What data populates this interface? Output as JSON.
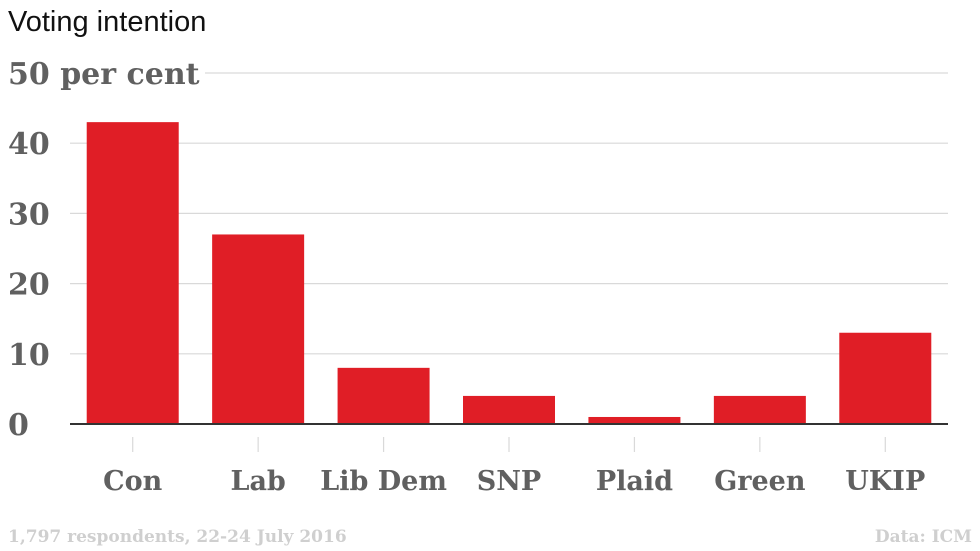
{
  "title": "Voting intention",
  "footer": {
    "note": "1,797 respondents, 22-24 July 2016",
    "source": "Data: ICM"
  },
  "colors": {
    "bar": "#e01e26",
    "grid": "#d9d9d9",
    "axis": "#333333",
    "text": "#606060"
  },
  "chart_data": {
    "type": "bar",
    "title": "Voting intention",
    "categories": [
      "Con",
      "Lab",
      "Lib Dem",
      "SNP",
      "Plaid",
      "Green",
      "UKIP"
    ],
    "values": [
      43,
      27,
      8,
      4,
      1,
      4,
      13
    ],
    "ylim": [
      0,
      50
    ],
    "yticks": [
      0,
      10,
      20,
      30,
      40,
      50
    ],
    "ytick_labels": [
      "0",
      "10",
      "20",
      "30",
      "40",
      "50 per cent"
    ],
    "grid": true,
    "xlabel": "",
    "ylabel": ""
  }
}
